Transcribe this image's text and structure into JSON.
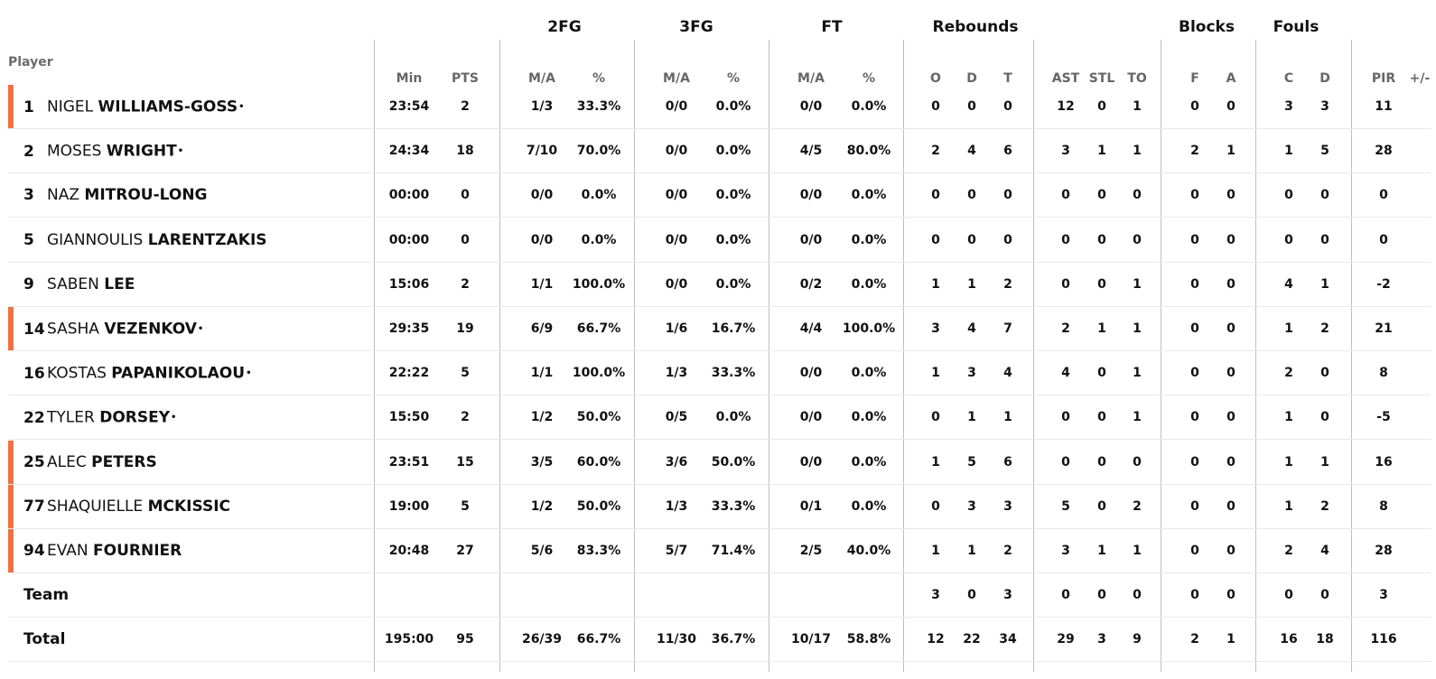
{
  "header": {
    "groups": {
      "fg2": "2FG",
      "fg3": "3FG",
      "ft": "FT",
      "rebounds": "Rebounds",
      "blocks": "Blocks",
      "fouls": "Fouls"
    },
    "player_label": "Player",
    "sub": {
      "min": "Min",
      "pts": "PTS",
      "fg2_ma": "M/A",
      "fg2_pct": "%",
      "fg3_ma": "M/A",
      "fg3_pct": "%",
      "ft_ma": "M/A",
      "ft_pct": "%",
      "reb_o": "O",
      "reb_d": "D",
      "reb_t": "T",
      "ast": "AST",
      "stl": "STL",
      "to": "TO",
      "blk_f": "F",
      "blk_a": "A",
      "foul_c": "C",
      "foul_d": "D",
      "pir": "PIR",
      "pm": "+/-"
    }
  },
  "marker_color": "#f4703f",
  "starter_symbol": "•",
  "players": [
    {
      "num": "1",
      "first": "NIGEL",
      "last": "WILLIAMS-GOSS",
      "starter": true,
      "marked": true,
      "min": "23:54",
      "pts": "2",
      "fg2_ma": "1/3",
      "fg2_pct": "33.3%",
      "fg3_ma": "0/0",
      "fg3_pct": "0.0%",
      "ft_ma": "0/0",
      "ft_pct": "0.0%",
      "reb_o": "0",
      "reb_d": "0",
      "reb_t": "0",
      "ast": "12",
      "stl": "0",
      "to": "1",
      "blk_f": "0",
      "blk_a": "0",
      "foul_c": "3",
      "foul_d": "3",
      "pir": "11",
      "pm": ""
    },
    {
      "num": "2",
      "first": "MOSES",
      "last": "WRIGHT",
      "starter": true,
      "marked": false,
      "min": "24:34",
      "pts": "18",
      "fg2_ma": "7/10",
      "fg2_pct": "70.0%",
      "fg3_ma": "0/0",
      "fg3_pct": "0.0%",
      "ft_ma": "4/5",
      "ft_pct": "80.0%",
      "reb_o": "2",
      "reb_d": "4",
      "reb_t": "6",
      "ast": "3",
      "stl": "1",
      "to": "1",
      "blk_f": "2",
      "blk_a": "1",
      "foul_c": "1",
      "foul_d": "5",
      "pir": "28",
      "pm": ""
    },
    {
      "num": "3",
      "first": "NAZ",
      "last": "MITROU-LONG",
      "starter": false,
      "marked": false,
      "min": "00:00",
      "pts": "0",
      "fg2_ma": "0/0",
      "fg2_pct": "0.0%",
      "fg3_ma": "0/0",
      "fg3_pct": "0.0%",
      "ft_ma": "0/0",
      "ft_pct": "0.0%",
      "reb_o": "0",
      "reb_d": "0",
      "reb_t": "0",
      "ast": "0",
      "stl": "0",
      "to": "0",
      "blk_f": "0",
      "blk_a": "0",
      "foul_c": "0",
      "foul_d": "0",
      "pir": "0",
      "pm": ""
    },
    {
      "num": "5",
      "first": "GIANNOULIS",
      "last": "LARENTZAKIS",
      "starter": false,
      "marked": false,
      "min": "00:00",
      "pts": "0",
      "fg2_ma": "0/0",
      "fg2_pct": "0.0%",
      "fg3_ma": "0/0",
      "fg3_pct": "0.0%",
      "ft_ma": "0/0",
      "ft_pct": "0.0%",
      "reb_o": "0",
      "reb_d": "0",
      "reb_t": "0",
      "ast": "0",
      "stl": "0",
      "to": "0",
      "blk_f": "0",
      "blk_a": "0",
      "foul_c": "0",
      "foul_d": "0",
      "pir": "0",
      "pm": ""
    },
    {
      "num": "9",
      "first": "SABEN",
      "last": "LEE",
      "starter": false,
      "marked": false,
      "min": "15:06",
      "pts": "2",
      "fg2_ma": "1/1",
      "fg2_pct": "100.0%",
      "fg3_ma": "0/0",
      "fg3_pct": "0.0%",
      "ft_ma": "0/2",
      "ft_pct": "0.0%",
      "reb_o": "1",
      "reb_d": "1",
      "reb_t": "2",
      "ast": "0",
      "stl": "0",
      "to": "1",
      "blk_f": "0",
      "blk_a": "0",
      "foul_c": "4",
      "foul_d": "1",
      "pir": "-2",
      "pm": ""
    },
    {
      "num": "14",
      "first": "SASHA",
      "last": "VEZENKOV",
      "starter": true,
      "marked": true,
      "min": "29:35",
      "pts": "19",
      "fg2_ma": "6/9",
      "fg2_pct": "66.7%",
      "fg3_ma": "1/6",
      "fg3_pct": "16.7%",
      "ft_ma": "4/4",
      "ft_pct": "100.0%",
      "reb_o": "3",
      "reb_d": "4",
      "reb_t": "7",
      "ast": "2",
      "stl": "1",
      "to": "1",
      "blk_f": "0",
      "blk_a": "0",
      "foul_c": "1",
      "foul_d": "2",
      "pir": "21",
      "pm": ""
    },
    {
      "num": "16",
      "first": "KOSTAS",
      "last": "PAPANIKOLAOU",
      "starter": true,
      "marked": false,
      "min": "22:22",
      "pts": "5",
      "fg2_ma": "1/1",
      "fg2_pct": "100.0%",
      "fg3_ma": "1/3",
      "fg3_pct": "33.3%",
      "ft_ma": "0/0",
      "ft_pct": "0.0%",
      "reb_o": "1",
      "reb_d": "3",
      "reb_t": "4",
      "ast": "4",
      "stl": "0",
      "to": "1",
      "blk_f": "0",
      "blk_a": "0",
      "foul_c": "2",
      "foul_d": "0",
      "pir": "8",
      "pm": ""
    },
    {
      "num": "22",
      "first": "TYLER",
      "last": "DORSEY",
      "starter": true,
      "marked": false,
      "min": "15:50",
      "pts": "2",
      "fg2_ma": "1/2",
      "fg2_pct": "50.0%",
      "fg3_ma": "0/5",
      "fg3_pct": "0.0%",
      "ft_ma": "0/0",
      "ft_pct": "0.0%",
      "reb_o": "0",
      "reb_d": "1",
      "reb_t": "1",
      "ast": "0",
      "stl": "0",
      "to": "1",
      "blk_f": "0",
      "blk_a": "0",
      "foul_c": "1",
      "foul_d": "0",
      "pir": "-5",
      "pm": ""
    },
    {
      "num": "25",
      "first": "ALEC",
      "last": "PETERS",
      "starter": false,
      "marked": true,
      "min": "23:51",
      "pts": "15",
      "fg2_ma": "3/5",
      "fg2_pct": "60.0%",
      "fg3_ma": "3/6",
      "fg3_pct": "50.0%",
      "ft_ma": "0/0",
      "ft_pct": "0.0%",
      "reb_o": "1",
      "reb_d": "5",
      "reb_t": "6",
      "ast": "0",
      "stl": "0",
      "to": "0",
      "blk_f": "0",
      "blk_a": "0",
      "foul_c": "1",
      "foul_d": "1",
      "pir": "16",
      "pm": ""
    },
    {
      "num": "77",
      "first": "SHAQUIELLE",
      "last": "MCKISSIC",
      "starter": false,
      "marked": true,
      "min": "19:00",
      "pts": "5",
      "fg2_ma": "1/2",
      "fg2_pct": "50.0%",
      "fg3_ma": "1/3",
      "fg3_pct": "33.3%",
      "ft_ma": "0/1",
      "ft_pct": "0.0%",
      "reb_o": "0",
      "reb_d": "3",
      "reb_t": "3",
      "ast": "5",
      "stl": "0",
      "to": "2",
      "blk_f": "0",
      "blk_a": "0",
      "foul_c": "1",
      "foul_d": "2",
      "pir": "8",
      "pm": ""
    },
    {
      "num": "94",
      "first": "EVAN",
      "last": "FOURNIER",
      "starter": false,
      "marked": true,
      "min": "20:48",
      "pts": "27",
      "fg2_ma": "5/6",
      "fg2_pct": "83.3%",
      "fg3_ma": "5/7",
      "fg3_pct": "71.4%",
      "ft_ma": "2/5",
      "ft_pct": "40.0%",
      "reb_o": "1",
      "reb_d": "1",
      "reb_t": "2",
      "ast": "3",
      "stl": "1",
      "to": "1",
      "blk_f": "0",
      "blk_a": "0",
      "foul_c": "2",
      "foul_d": "4",
      "pir": "28",
      "pm": ""
    }
  ],
  "team": {
    "label": "Team",
    "min": "",
    "pts": "",
    "fg2_ma": "",
    "fg2_pct": "",
    "fg3_ma": "",
    "fg3_pct": "",
    "ft_ma": "",
    "ft_pct": "",
    "reb_o": "3",
    "reb_d": "0",
    "reb_t": "3",
    "ast": "0",
    "stl": "0",
    "to": "0",
    "blk_f": "0",
    "blk_a": "0",
    "foul_c": "0",
    "foul_d": "0",
    "pir": "3",
    "pm": ""
  },
  "total": {
    "label": "Total",
    "min": "195:00",
    "pts": "95",
    "fg2_ma": "26/39",
    "fg2_pct": "66.7%",
    "fg3_ma": "11/30",
    "fg3_pct": "36.7%",
    "ft_ma": "10/17",
    "ft_pct": "58.8%",
    "reb_o": "12",
    "reb_d": "22",
    "reb_t": "34",
    "ast": "29",
    "stl": "3",
    "to": "9",
    "blk_f": "2",
    "blk_a": "1",
    "foul_c": "16",
    "foul_d": "18",
    "pir": "116",
    "pm": ""
  }
}
